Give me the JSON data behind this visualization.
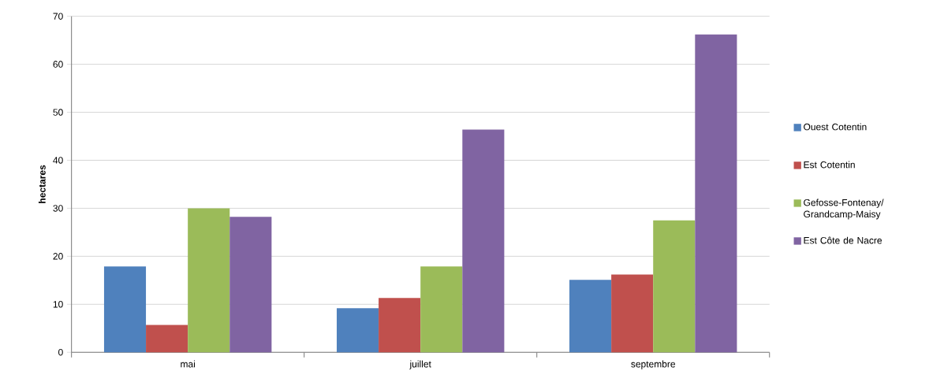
{
  "chart_data": {
    "type": "bar",
    "ylabel": "hectares",
    "categories": [
      "mai",
      "juillet",
      "septembre"
    ],
    "series": [
      {
        "name": "Ouest Cotentin",
        "color": "#4f81bd",
        "values": [
          17.9,
          9.2,
          15.1
        ]
      },
      {
        "name": "Est Cotentin",
        "color": "#c0504d",
        "values": [
          5.7,
          11.3,
          16.2
        ]
      },
      {
        "name": "Gefosse-Fontenay/ Grandcamp-Maisy",
        "color": "#9bbb59",
        "values": [
          30,
          17.9,
          27.5
        ]
      },
      {
        "name": "Est Côte de Nacre",
        "color": "#8064a2",
        "values": [
          28.2,
          46.4,
          66.2
        ]
      }
    ],
    "ylim": [
      0,
      70
    ],
    "yticks": [
      0,
      10,
      20,
      30,
      40,
      50,
      60,
      70
    ],
    "grid": "y",
    "legend": "right"
  }
}
